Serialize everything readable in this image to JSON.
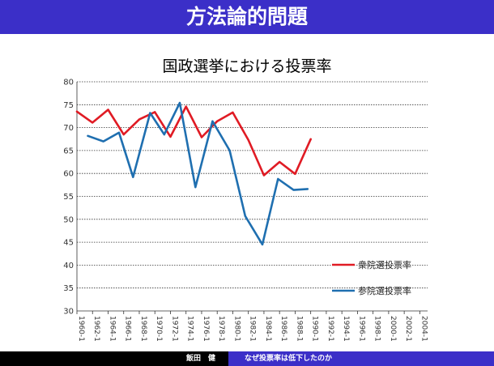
{
  "header": {
    "title": "方法論的問題"
  },
  "footer": {
    "author": "飯田　健",
    "subtitle": "なぜ投票率は低下したのか"
  },
  "colors": {
    "header_bg": "#3b2fc8",
    "house_of_representatives": "#e01b24",
    "house_of_councillors": "#1f6fb0"
  },
  "chart_data": {
    "type": "line",
    "title": "国政選挙における投票率",
    "ylim": [
      30,
      80
    ],
    "yticks": [
      30,
      35,
      40,
      45,
      50,
      55,
      60,
      65,
      70,
      75,
      80
    ],
    "grid": true,
    "x_labels": [
      "1960-1",
      "1962-1",
      "1964-1",
      "1966-1",
      "1968-1",
      "1970-1",
      "1972-1",
      "1974-1",
      "1976-1",
      "1978-1",
      "1980-1",
      "1982-1",
      "1984-1",
      "1986-1",
      "1988-1",
      "1990-1",
      "1992-1",
      "1994-1",
      "1996-1",
      "1998-1",
      "2000-1",
      "2002-1",
      "2004-1"
    ],
    "legend_position": "bottom-right",
    "series": [
      {
        "name": "衆院選投票率",
        "color": "#e01b24",
        "points": [
          [
            0,
            73.5
          ],
          [
            1,
            71.1
          ],
          [
            2,
            73.9
          ],
          [
            3,
            68.5
          ],
          [
            4,
            71.8
          ],
          [
            5,
            73.4
          ],
          [
            6,
            68.0
          ],
          [
            7,
            74.6
          ],
          [
            8,
            67.9
          ],
          [
            9,
            71.4
          ],
          [
            10,
            73.3
          ],
          [
            11,
            67.3
          ],
          [
            12,
            59.6
          ],
          [
            13,
            62.5
          ],
          [
            14,
            59.9
          ],
          [
            15,
            67.5
          ]
        ]
      },
      {
        "name": "参院選投票率",
        "color": "#1f6fb0",
        "points": [
          [
            0.7,
            68.2
          ],
          [
            1.7,
            67.0
          ],
          [
            2.7,
            68.9
          ],
          [
            3.6,
            59.2
          ],
          [
            4.7,
            73.2
          ],
          [
            5.6,
            68.5
          ],
          [
            6.6,
            75.4
          ],
          [
            7.6,
            57.0
          ],
          [
            8.7,
            71.4
          ],
          [
            9.8,
            65.0
          ],
          [
            10.8,
            50.7
          ],
          [
            11.9,
            44.5
          ],
          [
            12.9,
            58.8
          ],
          [
            13.9,
            56.4
          ],
          [
            14.8,
            56.6
          ]
        ]
      }
    ]
  }
}
